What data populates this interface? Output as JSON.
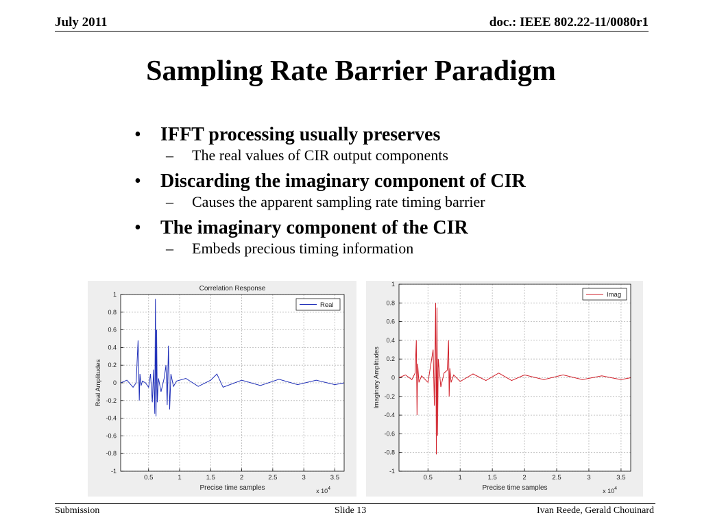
{
  "header": {
    "date": "July 2011",
    "doc": "doc.: IEEE 802.22-11/0080r1"
  },
  "title": "Sampling Rate Barrier Paradigm",
  "bullets": [
    {
      "text": "IFFT processing usually preserves",
      "sub": "The real values of CIR output components"
    },
    {
      "text": "Discarding the imaginary component of CIR",
      "sub": "Causes the apparent sampling rate timing barrier"
    },
    {
      "text": "The imaginary component of the CIR",
      "sub": "Embeds precious timing information"
    }
  ],
  "chart_data": [
    {
      "type": "line",
      "title": "Correlation Response",
      "xlabel": "Precise time samples",
      "ylabel": "Real Amplitudes",
      "x_multiplier": "x 10^4",
      "xlim": [
        0.05,
        3.65
      ],
      "ylim": [
        -1,
        1
      ],
      "xticks": [
        0.5,
        1,
        1.5,
        2,
        2.5,
        3,
        3.5
      ],
      "xtick_labels": [
        "0.5",
        "1",
        "1.5",
        "2",
        "2.5",
        "3",
        "3.5"
      ],
      "yticks": [
        -1,
        -0.8,
        -0.6,
        -0.4,
        -0.2,
        0,
        0.2,
        0.4,
        0.6,
        0.8,
        1
      ],
      "ytick_labels": [
        "-1",
        "-0.8",
        "-0.6",
        "-0.4",
        "-0.2",
        "0",
        "0.2",
        "0.4",
        "0.6",
        "0.8",
        "1"
      ],
      "grid": true,
      "legend": "top-right",
      "series": [
        {
          "name": "Real",
          "color": "#1f2fb8",
          "x": [
            0.05,
            0.15,
            0.25,
            0.3,
            0.33,
            0.35,
            0.36,
            0.38,
            0.4,
            0.45,
            0.5,
            0.53,
            0.56,
            0.58,
            0.6,
            0.61,
            0.62,
            0.63,
            0.64,
            0.66,
            0.7,
            0.75,
            0.78,
            0.8,
            0.82,
            0.84,
            0.86,
            0.9,
            0.95,
            1.1,
            1.3,
            1.5,
            1.6,
            1.7,
            2.0,
            2.3,
            2.6,
            2.9,
            3.2,
            3.5,
            3.65
          ],
          "y": [
            0.0,
            0.03,
            -0.05,
            0.0,
            0.48,
            -0.2,
            0.1,
            -0.03,
            0.02,
            0.0,
            -0.05,
            0.1,
            -0.22,
            0.15,
            -0.35,
            0.95,
            -0.38,
            0.6,
            -0.22,
            0.05,
            -0.1,
            0.05,
            0.2,
            -0.25,
            0.42,
            -0.3,
            0.1,
            -0.04,
            0.02,
            0.05,
            -0.04,
            0.03,
            0.1,
            -0.05,
            0.03,
            -0.03,
            0.04,
            -0.02,
            0.03,
            -0.02,
            0.0
          ]
        }
      ]
    },
    {
      "type": "line",
      "title": "",
      "xlabel": "Precise time samples",
      "ylabel": "Imaginary Amplitudes",
      "x_multiplier": "x 10^4",
      "xlim": [
        0.05,
        3.65
      ],
      "ylim": [
        -1,
        1
      ],
      "xticks": [
        0.5,
        1,
        1.5,
        2,
        2.5,
        3,
        3.5
      ],
      "xtick_labels": [
        "0.5",
        "1",
        "1.5",
        "2",
        "2.5",
        "3",
        "3.5"
      ],
      "yticks": [
        -1,
        -0.8,
        -0.6,
        -0.4,
        -0.2,
        0,
        0.2,
        0.4,
        0.6,
        0.8,
        1
      ],
      "ytick_labels": [
        "-1",
        "-0.8",
        "-0.6",
        "-0.4",
        "-0.2",
        "0",
        "0.2",
        "0.4",
        "0.6",
        "0.8",
        "1"
      ],
      "grid": true,
      "legend": "top-right",
      "series": [
        {
          "name": "Imag",
          "color": "#d0202a",
          "x": [
            0.05,
            0.15,
            0.25,
            0.3,
            0.32,
            0.33,
            0.34,
            0.36,
            0.4,
            0.5,
            0.58,
            0.6,
            0.62,
            0.63,
            0.64,
            0.65,
            0.66,
            0.7,
            0.75,
            0.8,
            0.82,
            0.83,
            0.84,
            0.86,
            0.9,
            1.0,
            1.2,
            1.4,
            1.6,
            1.8,
            2.0,
            2.3,
            2.6,
            2.9,
            3.2,
            3.5,
            3.65
          ],
          "y": [
            0.0,
            0.03,
            -0.02,
            0.05,
            0.4,
            -0.4,
            0.15,
            -0.05,
            0.02,
            -0.05,
            0.3,
            -0.3,
            0.8,
            -0.82,
            0.75,
            -0.62,
            0.2,
            -0.1,
            0.05,
            0.08,
            0.4,
            -0.2,
            0.1,
            -0.05,
            0.03,
            -0.04,
            0.04,
            -0.03,
            0.05,
            -0.03,
            0.03,
            -0.02,
            0.03,
            -0.02,
            0.02,
            -0.02,
            0.0
          ]
        }
      ]
    }
  ],
  "footer": {
    "left": "Submission",
    "mid": "Slide 13",
    "right": "Ivan Reede, Gerald Chouinard"
  }
}
